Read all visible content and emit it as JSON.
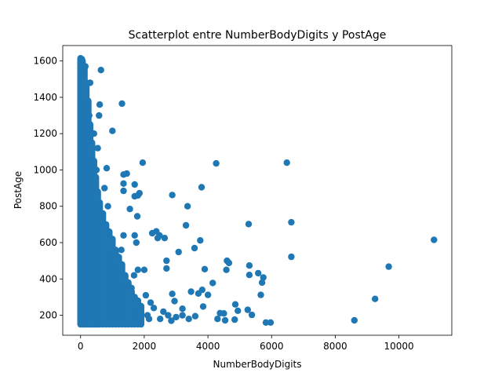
{
  "chart_data": {
    "type": "scatter",
    "title": "Scatterplot entre NumberBodyDigits y PostAge",
    "xlabel": "NumberBodyDigits",
    "ylabel": "PostAge",
    "xlim": [
      -560,
      11660
    ],
    "ylim": [
      90,
      1685
    ],
    "xticks": [
      0,
      2000,
      4000,
      6000,
      8000,
      10000
    ],
    "yticks": [
      200,
      400,
      600,
      800,
      1000,
      1200,
      1400,
      1600
    ],
    "grid": false,
    "marker_color": "#1f77b4",
    "points": [
      [
        11100,
        615
      ],
      [
        9680,
        468
      ],
      [
        9250,
        290
      ],
      [
        8600,
        172
      ],
      [
        6620,
        712
      ],
      [
        6620,
        522
      ],
      [
        6480,
        1040
      ],
      [
        5970,
        160
      ],
      [
        5820,
        160
      ],
      [
        5740,
        408
      ],
      [
        5700,
        380
      ],
      [
        5660,
        312
      ],
      [
        5580,
        432
      ],
      [
        5380,
        202
      ],
      [
        5280,
        702
      ],
      [
        5300,
        474
      ],
      [
        5300,
        422
      ],
      [
        5250,
        230
      ],
      [
        4940,
        225
      ],
      [
        4860,
        260
      ],
      [
        4840,
        176
      ],
      [
        4600,
        500
      ],
      [
        4660,
        488
      ],
      [
        4580,
        450
      ],
      [
        4540,
        172
      ],
      [
        4500,
        210
      ],
      [
        4380,
        212
      ],
      [
        4300,
        180
      ],
      [
        4260,
        1036
      ],
      [
        4150,
        378
      ],
      [
        4000,
        312
      ],
      [
        3900,
        454
      ],
      [
        3850,
        248
      ],
      [
        3800,
        905
      ],
      [
        3820,
        340
      ],
      [
        3760,
        612
      ],
      [
        3700,
        320
      ],
      [
        3580,
        570
      ],
      [
        3470,
        330
      ],
      [
        3360,
        800
      ],
      [
        3310,
        695
      ],
      [
        3200,
        236
      ],
      [
        3080,
        548
      ],
      [
        2950,
        278
      ],
      [
        2880,
        862
      ],
      [
        2880,
        318
      ],
      [
        2700,
        458
      ],
      [
        2700,
        500
      ],
      [
        2640,
        625
      ],
      [
        2480,
        640
      ],
      [
        2420,
        625
      ],
      [
        2380,
        662
      ],
      [
        2300,
        240
      ],
      [
        2250,
        652
      ],
      [
        2200,
        270
      ],
      [
        2150,
        180
      ],
      [
        2050,
        310
      ],
      [
        2000,
        450
      ],
      [
        1950,
        1040
      ],
      [
        1850,
        872
      ],
      [
        1800,
        860
      ],
      [
        1700,
        855
      ],
      [
        1700,
        920
      ],
      [
        1780,
        745
      ],
      [
        1700,
        640
      ],
      [
        1750,
        600
      ],
      [
        1800,
        450
      ],
      [
        1680,
        420
      ],
      [
        1600,
        350
      ],
      [
        1550,
        785
      ],
      [
        1450,
        980
      ],
      [
        1350,
        975
      ],
      [
        1350,
        925
      ],
      [
        1350,
        885
      ],
      [
        1300,
        1365
      ],
      [
        1350,
        640
      ],
      [
        1280,
        560
      ],
      [
        1200,
        520
      ],
      [
        1150,
        450
      ],
      [
        1100,
        390
      ],
      [
        1050,
        340
      ],
      [
        1000,
        1215
      ],
      [
        1000,
        600
      ],
      [
        950,
        500
      ],
      [
        920,
        450
      ],
      [
        900,
        380
      ],
      [
        860,
        800
      ],
      [
        820,
        1010
      ],
      [
        750,
        900
      ],
      [
        700,
        760
      ],
      [
        640,
        1550
      ],
      [
        600,
        1360
      ],
      [
        580,
        1300
      ],
      [
        540,
        1120
      ],
      [
        500,
        1000
      ],
      [
        520,
        880
      ],
      [
        460,
        700
      ],
      [
        420,
        1200
      ],
      [
        400,
        1050
      ],
      [
        380,
        900
      ],
      [
        350,
        780
      ],
      [
        330,
        620
      ],
      [
        300,
        1480
      ],
      [
        270,
        1300
      ],
      [
        250,
        1100
      ],
      [
        230,
        960
      ],
      [
        210,
        820
      ],
      [
        190,
        700
      ],
      [
        170,
        600
      ],
      [
        150,
        1570
      ],
      [
        130,
        1420
      ],
      [
        120,
        1250
      ],
      [
        110,
        1080
      ],
      [
        100,
        940
      ],
      [
        90,
        840
      ],
      [
        80,
        740
      ],
      [
        60,
        660
      ],
      [
        50,
        580
      ],
      [
        40,
        1610
      ],
      [
        30,
        1560
      ],
      [
        20,
        1500
      ],
      [
        10,
        1460
      ],
      [
        0,
        1400
      ],
      [
        1600,
        200
      ],
      [
        1500,
        260
      ],
      [
        1400,
        300
      ],
      [
        1300,
        240
      ],
      [
        1200,
        200
      ],
      [
        1100,
        180
      ],
      [
        1900,
        250
      ],
      [
        2100,
        200
      ],
      [
        2500,
        180
      ],
      [
        2600,
        220
      ],
      [
        2750,
        200
      ],
      [
        2850,
        170
      ],
      [
        3000,
        190
      ],
      [
        3200,
        200
      ],
      [
        3400,
        180
      ],
      [
        3600,
        195
      ]
    ]
  }
}
